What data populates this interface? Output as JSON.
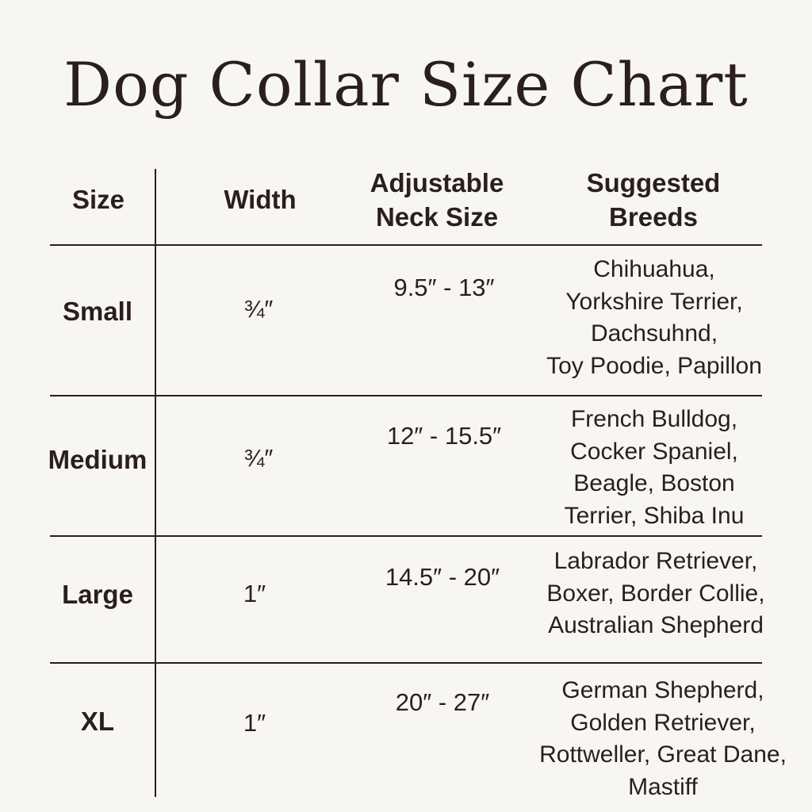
{
  "title": "Dog Collar Size Chart",
  "headers": {
    "size": "Size",
    "width": "Width",
    "neck": [
      "Adjustable",
      "Neck Size"
    ],
    "breeds": [
      "Suggested",
      "Breeds"
    ]
  },
  "rows": [
    {
      "size": "Small",
      "width": "¾″",
      "neck": "9.5″ - 13″",
      "breeds": [
        "Chihuahua,",
        "Yorkshire Terrier,",
        "Dachsuhnd,",
        "Toy Poodie, Papillon"
      ]
    },
    {
      "size": "Medium",
      "width": "¾″",
      "neck": "12″ - 15.5″",
      "breeds": [
        "French Bulldog,",
        "Cocker Spaniel,",
        "Beagle, Boston",
        "Terrier, Shiba Inu"
      ]
    },
    {
      "size": "Large",
      "width": "1″",
      "neck": "14.5″ - 20″",
      "breeds": [
        "Labrador Retriever,",
        "Boxer, Border Collie,",
        "Australian Shepherd"
      ]
    },
    {
      "size": "XL",
      "width": "1″",
      "neck": "20″ - 27″",
      "breeds": [
        "German Shepherd,",
        "Golden Retriever,",
        "Rottweller, Great Dane,",
        "Mastiff"
      ]
    }
  ]
}
